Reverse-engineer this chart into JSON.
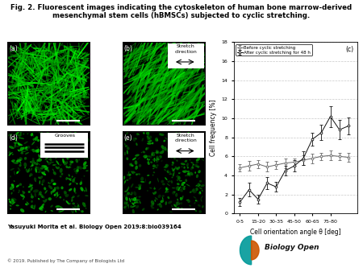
{
  "title": "Fig. 2. Fluorescent images indicating the cytoskeleton of human bone marrow-derived\nmesenchymal stem cells (hBMSCs) subjected to cyclic stretching.",
  "before_y": [
    4.8,
    5.0,
    5.2,
    4.9,
    5.1,
    5.3,
    5.4,
    5.6,
    5.8,
    6.0,
    6.1,
    6.0,
    5.9
  ],
  "after_y": [
    1.2,
    2.5,
    1.5,
    3.2,
    2.8,
    4.5,
    5.0,
    5.8,
    7.8,
    8.5,
    10.2,
    8.8,
    9.2
  ],
  "before_err": [
    0.4,
    0.5,
    0.4,
    0.5,
    0.4,
    0.5,
    0.4,
    0.5,
    0.5,
    0.4,
    0.5,
    0.4,
    0.5
  ],
  "after_err": [
    0.4,
    0.7,
    0.5,
    0.6,
    0.5,
    0.5,
    0.6,
    0.7,
    0.7,
    0.8,
    1.1,
    1.0,
    0.9
  ],
  "x_positions": [
    0.5,
    1.5,
    2.5,
    3.5,
    4.5,
    5.5,
    6.5,
    7.5,
    8.5,
    9.5,
    10.5,
    11.5,
    12.5
  ],
  "xtick_pos": [
    0.5,
    2.5,
    4.5,
    6.5,
    8.5,
    10.5
  ],
  "xtick_labels": [
    "0-5",
    "15-20",
    "30-35",
    "45-50",
    "60-65",
    "75-80"
  ],
  "xlabel": "Cell orientation angle θ [deg]",
  "ylabel": "Cell frequency [%]",
  "ylim": [
    0,
    18
  ],
  "yticks": [
    0,
    2,
    4,
    6,
    8,
    10,
    12,
    14,
    16,
    18
  ],
  "xlim": [
    -0.2,
    13.5
  ],
  "legend_before": "Before cyclic stretching",
  "legend_after": "After cyclic stretching for 48 h",
  "panel_c_label": "(c)",
  "annotation_author": "Yasuyuki Morita et al. Biology Open 2019;8:bio039164",
  "annotation_copyright": "© 2019. Published by The Company of Biologists Ltd",
  "bg_color": "#ffffff",
  "line_color_before": "#666666",
  "line_color_after": "#111111",
  "grid_color": "#bbbbbb"
}
